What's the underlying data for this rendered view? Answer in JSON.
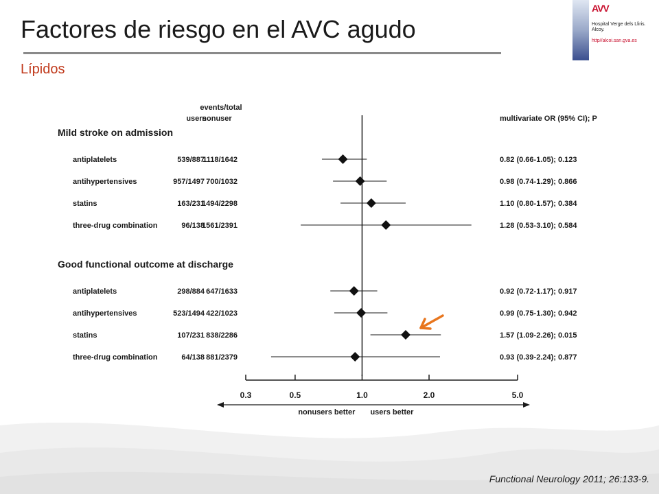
{
  "slide": {
    "title": "Factores de riesgo en el AVC agudo",
    "subtitle": "Lípidos",
    "citation": "Functional Neurology 2011; 26:133-9."
  },
  "logo": {
    "mark": "AVV",
    "hospital_lines": [
      "Hospital Verge dels Lliris.",
      "Alcoy."
    ],
    "url": "http//alcoi.san.gva.es"
  },
  "colors": {
    "title": "#1a1a1a",
    "subtitle": "#c0391b",
    "arrow": "#e8761e",
    "marker": "#111111"
  },
  "chart_data": {
    "type": "forest",
    "column_headers": {
      "events_total": "events/total",
      "users": "users",
      "nonuser": "nonuser",
      "ratio": "multivariate OR (95% CI); P"
    },
    "groups": [
      {
        "title": "Mild stroke on admission",
        "rows": [
          {
            "label": "antiplatelets",
            "users": "539/887",
            "nonusers": "1118/1642",
            "or": 0.82,
            "ci": [
              0.66,
              1.05
            ],
            "p": "0.123",
            "text": "0.82 (0.66-1.05); 0.123"
          },
          {
            "label": "antihypertensives",
            "users": "957/1497",
            "nonusers": "700/1032",
            "or": 0.98,
            "ci": [
              0.74,
              1.29
            ],
            "p": "0.866",
            "text": "0.98 (0.74-1.29); 0.866"
          },
          {
            "label": "statins",
            "users": "163/231",
            "nonusers": "1494/2298",
            "or": 1.1,
            "ci": [
              0.8,
              1.57
            ],
            "p": "0.384",
            "text": "1.10 (0.80-1.57); 0.384"
          },
          {
            "label": "three-drug combination",
            "users": "96/138",
            "nonusers": "1561/2391",
            "or": 1.28,
            "ci": [
              0.53,
              3.1
            ],
            "p": "0.584",
            "text": "1.28 (0.53-3.10); 0.584"
          }
        ]
      },
      {
        "title": "Good functional outcome at discharge",
        "rows": [
          {
            "label": "antiplatelets",
            "users": "298/884",
            "nonusers": "647/1633",
            "or": 0.92,
            "ci": [
              0.72,
              1.17
            ],
            "p": "0.917",
            "text": "0.92 (0.72-1.17); 0.917"
          },
          {
            "label": "antihypertensives",
            "users": "523/1494",
            "nonusers": "422/1023",
            "or": 0.99,
            "ci": [
              0.75,
              1.3
            ],
            "p": "0.942",
            "text": "0.99 (0.75-1.30); 0.942"
          },
          {
            "label": "statins",
            "users": "107/231",
            "nonusers": "838/2286",
            "or": 1.57,
            "ci": [
              1.09,
              2.26
            ],
            "p": "0.015",
            "text": "1.57 (1.09-2.26); 0.015",
            "highlight": true
          },
          {
            "label": "three-drug combination",
            "users": "64/138",
            "nonusers": "881/2379",
            "or": 0.93,
            "ci": [
              0.39,
              2.24
            ],
            "p": "0.877",
            "text": "0.93 (0.39-2.24); 0.877"
          }
        ]
      }
    ],
    "x_scale": "log",
    "x_ticks": [
      0.3,
      0.5,
      1.0,
      2.0,
      5.0
    ],
    "x_tick_labels": [
      "0.3",
      "0.5",
      "1.0",
      "2.0",
      "5.0"
    ],
    "xlim": [
      0.3,
      5.0
    ],
    "reference": 1.0,
    "direction_left": "nonusers better",
    "direction_right": "users better"
  }
}
